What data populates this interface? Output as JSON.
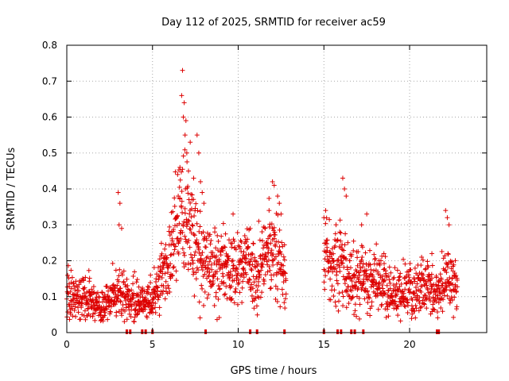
{
  "chart_data": {
    "type": "scatter",
    "title": "Day 112 of 2025, SRMTID for receiver ac59",
    "xlabel": "GPS time / hours",
    "ylabel": "SRMTID / TECUs",
    "xlim": [
      0,
      24.5
    ],
    "ylim": [
      0,
      0.8
    ],
    "grid": true,
    "x_ticks": [
      0,
      5,
      10,
      15,
      20
    ],
    "y_ticks": [
      0,
      0.1,
      0.2,
      0.3,
      0.4,
      0.5,
      0.6,
      0.7,
      0.8
    ],
    "x_tick_labels": [
      "0",
      "5",
      "10",
      "15",
      "20"
    ],
    "y_tick_labels": [
      "0",
      "0.1",
      "0.2",
      "0.3",
      "0.4",
      "0.5",
      "0.6",
      "0.7",
      "0.8"
    ],
    "marker": "+",
    "color": "#dd0000",
    "baseline_markers_x": [
      3.5,
      3.7,
      4.4,
      4.6,
      5.0,
      8.1,
      10.7,
      11.1,
      12.7,
      15.0,
      15.8,
      16.0,
      16.6,
      16.8,
      17.3,
      21.6,
      21.7
    ],
    "profile": [
      [
        0.0,
        0.11,
        0.035
      ],
      [
        0.5,
        0.095,
        0.03
      ],
      [
        1.0,
        0.11,
        0.035
      ],
      [
        1.5,
        0.075,
        0.025
      ],
      [
        2.0,
        0.065,
        0.025
      ],
      [
        2.5,
        0.09,
        0.03
      ],
      [
        3.0,
        0.12,
        0.04
      ],
      [
        3.5,
        0.1,
        0.03
      ],
      [
        4.0,
        0.095,
        0.03
      ],
      [
        4.5,
        0.08,
        0.025
      ],
      [
        5.0,
        0.09,
        0.03
      ],
      [
        5.5,
        0.14,
        0.04
      ],
      [
        6.0,
        0.22,
        0.06
      ],
      [
        6.5,
        0.3,
        0.08
      ],
      [
        7.0,
        0.32,
        0.09
      ],
      [
        7.5,
        0.26,
        0.07
      ],
      [
        8.0,
        0.22,
        0.06
      ],
      [
        8.5,
        0.18,
        0.05
      ],
      [
        9.0,
        0.17,
        0.05
      ],
      [
        9.5,
        0.16,
        0.05
      ],
      [
        10.0,
        0.17,
        0.05
      ],
      [
        10.5,
        0.18,
        0.05
      ],
      [
        11.0,
        0.16,
        0.05
      ],
      [
        11.5,
        0.2,
        0.06
      ],
      [
        12.0,
        0.24,
        0.07
      ],
      [
        12.5,
        0.2,
        0.05
      ],
      [
        12.8,
        0.14,
        0.04
      ],
      [
        15.0,
        0.22,
        0.06
      ],
      [
        15.5,
        0.19,
        0.05
      ],
      [
        16.0,
        0.2,
        0.06
      ],
      [
        16.5,
        0.15,
        0.05
      ],
      [
        17.0,
        0.16,
        0.05
      ],
      [
        17.5,
        0.15,
        0.04
      ],
      [
        18.0,
        0.14,
        0.04
      ],
      [
        18.5,
        0.12,
        0.04
      ],
      [
        19.0,
        0.11,
        0.035
      ],
      [
        19.5,
        0.12,
        0.04
      ],
      [
        20.0,
        0.11,
        0.035
      ],
      [
        20.5,
        0.13,
        0.04
      ],
      [
        21.0,
        0.12,
        0.035
      ],
      [
        21.5,
        0.1,
        0.03
      ],
      [
        22.0,
        0.14,
        0.05
      ],
      [
        22.5,
        0.16,
        0.05
      ],
      [
        22.8,
        0.12,
        0.04
      ]
    ],
    "peaks": [
      [
        3.0,
        0.39
      ],
      [
        3.1,
        0.36
      ],
      [
        3.2,
        0.29
      ],
      [
        3.05,
        0.3
      ],
      [
        6.75,
        0.73
      ],
      [
        6.7,
        0.66
      ],
      [
        6.85,
        0.64
      ],
      [
        6.8,
        0.6
      ],
      [
        6.95,
        0.59
      ],
      [
        6.9,
        0.55
      ],
      [
        7.2,
        0.53
      ],
      [
        7.0,
        0.5
      ],
      [
        7.6,
        0.55
      ],
      [
        7.7,
        0.5
      ],
      [
        6.6,
        0.46
      ],
      [
        7.1,
        0.45
      ],
      [
        7.4,
        0.43
      ],
      [
        7.8,
        0.42
      ],
      [
        7.9,
        0.39
      ],
      [
        6.5,
        0.38
      ],
      [
        7.3,
        0.37
      ],
      [
        8.0,
        0.36
      ],
      [
        12.0,
        0.42
      ],
      [
        12.1,
        0.41
      ],
      [
        12.3,
        0.38
      ],
      [
        12.4,
        0.36
      ],
      [
        11.8,
        0.34
      ],
      [
        12.5,
        0.33
      ],
      [
        10.7,
        0.29
      ],
      [
        11.2,
        0.31
      ],
      [
        9.7,
        0.33
      ],
      [
        16.1,
        0.43
      ],
      [
        16.2,
        0.4
      ],
      [
        16.3,
        0.38
      ],
      [
        15.1,
        0.34
      ],
      [
        15.0,
        0.32
      ],
      [
        17.5,
        0.33
      ],
      [
        17.2,
        0.3
      ],
      [
        22.1,
        0.34
      ],
      [
        22.2,
        0.32
      ],
      [
        22.3,
        0.3
      ],
      [
        21.3,
        0.22
      ],
      [
        20.7,
        0.21
      ],
      [
        18.5,
        0.22
      ]
    ]
  }
}
